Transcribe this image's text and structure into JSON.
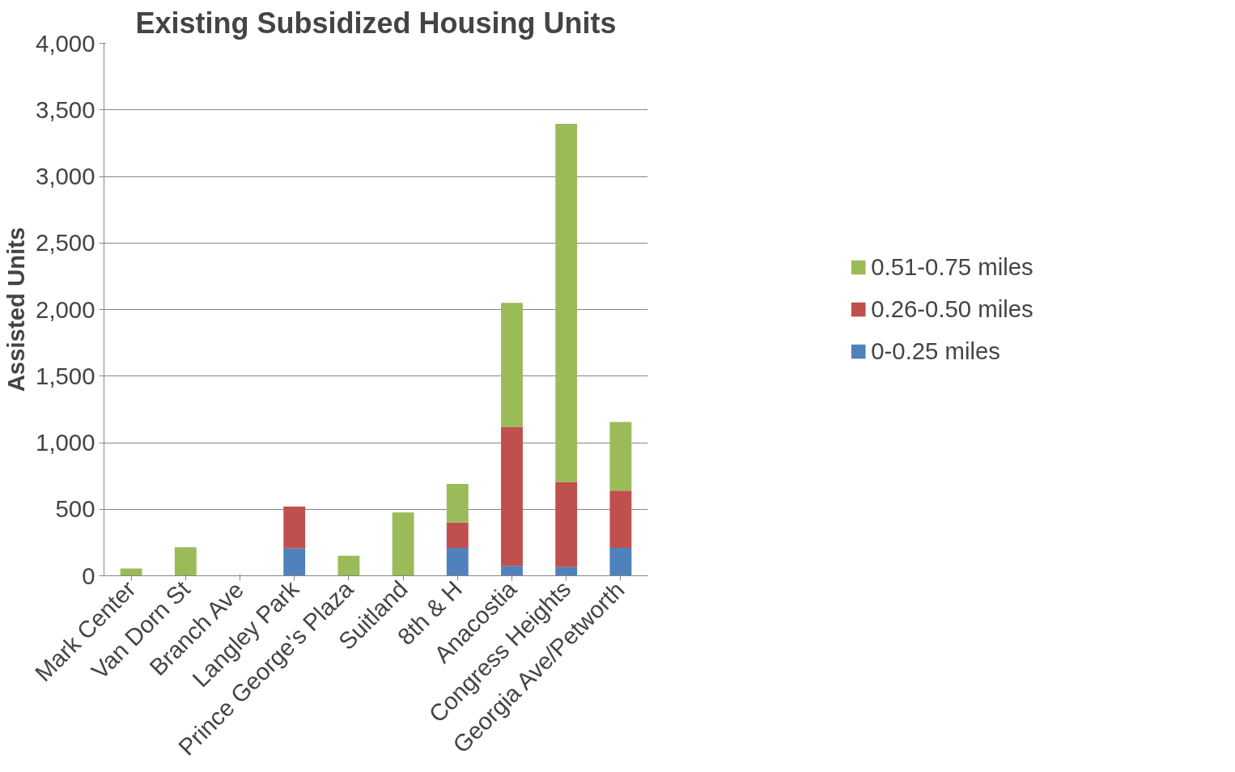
{
  "chart_data": {
    "type": "bar",
    "title": "Existing Subsidized Housing Units",
    "ylabel": "Assisted Units",
    "categories": [
      "Mark Center",
      "Van Dorn St",
      "Branch Ave",
      "Langley Park",
      "Prince George's Plaza",
      "Suitland",
      "8th & H",
      "Anacostia",
      "Congress Heights",
      "Georgia Ave/Petworth"
    ],
    "stacked": true,
    "series": [
      {
        "name": "0-0.25 miles",
        "color": "#4f81bd",
        "values": [
          0,
          0,
          0,
          205,
          0,
          0,
          210,
          75,
          65,
          210
        ]
      },
      {
        "name": "0.26-0.50 miles",
        "color": "#c0504d",
        "values": [
          0,
          0,
          0,
          315,
          0,
          0,
          190,
          1040,
          640,
          430
        ]
      },
      {
        "name": "0.51-0.75 miles",
        "color": "#9bbb59",
        "values": [
          55,
          215,
          0,
          0,
          150,
          475,
          290,
          935,
          2690,
          515
        ]
      }
    ],
    "ylim": [
      0,
      4000
    ],
    "yticks": [
      {
        "value": 0,
        "label": "0"
      },
      {
        "value": 500,
        "label": "500"
      },
      {
        "value": 1000,
        "label": "1,000"
      },
      {
        "value": 1500,
        "label": "1,500"
      },
      {
        "value": 2000,
        "label": "2,000"
      },
      {
        "value": 2500,
        "label": "2,500"
      },
      {
        "value": 3000,
        "label": "3,000"
      },
      {
        "value": 3500,
        "label": "3,500"
      },
      {
        "value": 4000,
        "label": "4,000"
      }
    ],
    "grid": "y",
    "legend": "right"
  }
}
